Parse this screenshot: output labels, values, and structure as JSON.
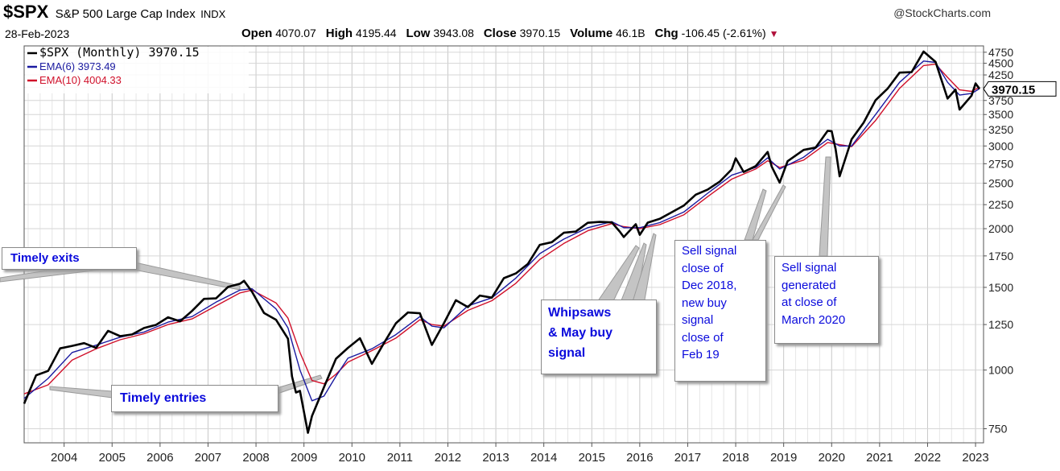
{
  "header": {
    "symbol": "$SPX",
    "description": "S&P 500 Large Cap Index",
    "exchange": "INDX",
    "credit": "@StockCharts.com",
    "date": "28-Feb-2023",
    "open_label": "Open",
    "open": "4070.07",
    "high_label": "High",
    "high": "4195.44",
    "low_label": "Low",
    "low": "3943.08",
    "close_label": "Close",
    "close": "3970.15",
    "volume_label": "Volume",
    "volume": "46.1B",
    "chg_label": "Chg",
    "chg": "-106.45 (-2.61%)"
  },
  "legend": {
    "items": [
      {
        "label": "$SPX (Monthly) 3970.15",
        "color": "#000000"
      },
      {
        "label": "EMA(6) 3973.49",
        "color": "#1a1aa0"
      },
      {
        "label": "EMA(10) 4004.33",
        "color": "#d0102a"
      }
    ]
  },
  "last_value_label": "3970.15",
  "annotations": {
    "timely_exits": "Timely exits",
    "timely_entries": "Timely entries",
    "whipsaws": [
      "Whipsaws",
      "& May buy",
      "signal"
    ],
    "dec2018": [
      "Sell signal",
      "close of",
      "Dec 2018,",
      "new buy",
      "signal",
      "close of",
      "Feb 19"
    ],
    "mar2020": [
      "Sell signal",
      "generated",
      "at close of",
      "March 2020"
    ]
  },
  "chart_data": {
    "type": "line",
    "title": "$SPX S&P 500 Large Cap Index INDX",
    "y_scale": "log",
    "ylim": [
      700,
      4900
    ],
    "xlim": [
      "2003-03",
      "2023-03"
    ],
    "y_ticks": [
      750,
      1000,
      1250,
      1500,
      1750,
      2000,
      2250,
      2500,
      2750,
      3000,
      3250,
      3500,
      3750,
      4000,
      4250,
      4500,
      4750
    ],
    "x_ticks": [
      "2004",
      "2005",
      "2006",
      "2007",
      "2008",
      "2009",
      "2010",
      "2011",
      "2012",
      "2013",
      "2014",
      "2015",
      "2016",
      "2017",
      "2018",
      "2019",
      "2020",
      "2021",
      "2022",
      "2023"
    ],
    "grid": true,
    "legend_position": "top-left",
    "series": [
      {
        "name": "$SPX (Monthly)",
        "color": "#000000",
        "points": [
          [
            "2003-03",
            848
          ],
          [
            "2003-06",
            975
          ],
          [
            "2003-09",
            996
          ],
          [
            "2003-12",
            1112
          ],
          [
            "2004-03",
            1126
          ],
          [
            "2004-06",
            1141
          ],
          [
            "2004-09",
            1115
          ],
          [
            "2004-12",
            1212
          ],
          [
            "2005-03",
            1181
          ],
          [
            "2005-06",
            1191
          ],
          [
            "2005-09",
            1229
          ],
          [
            "2005-12",
            1248
          ],
          [
            "2006-03",
            1295
          ],
          [
            "2006-06",
            1270
          ],
          [
            "2006-09",
            1336
          ],
          [
            "2006-12",
            1418
          ],
          [
            "2007-03",
            1421
          ],
          [
            "2007-06",
            1503
          ],
          [
            "2007-09",
            1527
          ],
          [
            "2007-10",
            1549
          ],
          [
            "2007-12",
            1468
          ],
          [
            "2008-03",
            1323
          ],
          [
            "2008-06",
            1280
          ],
          [
            "2008-09",
            1166
          ],
          [
            "2008-10",
            969
          ],
          [
            "2008-11",
            896
          ],
          [
            "2008-12",
            903
          ],
          [
            "2009-02",
            735
          ],
          [
            "2009-03",
            798
          ],
          [
            "2009-06",
            919
          ],
          [
            "2009-09",
            1057
          ],
          [
            "2009-12",
            1115
          ],
          [
            "2010-03",
            1169
          ],
          [
            "2010-06",
            1031
          ],
          [
            "2010-09",
            1141
          ],
          [
            "2010-12",
            1258
          ],
          [
            "2011-03",
            1326
          ],
          [
            "2011-06",
            1321
          ],
          [
            "2011-09",
            1131
          ],
          [
            "2011-12",
            1258
          ],
          [
            "2012-03",
            1408
          ],
          [
            "2012-06",
            1362
          ],
          [
            "2012-09",
            1441
          ],
          [
            "2012-12",
            1426
          ],
          [
            "2013-03",
            1569
          ],
          [
            "2013-06",
            1606
          ],
          [
            "2013-09",
            1682
          ],
          [
            "2013-12",
            1848
          ],
          [
            "2014-03",
            1872
          ],
          [
            "2014-06",
            1960
          ],
          [
            "2014-09",
            1972
          ],
          [
            "2014-12",
            2059
          ],
          [
            "2015-03",
            2068
          ],
          [
            "2015-06",
            2063
          ],
          [
            "2015-08",
            1972
          ],
          [
            "2015-09",
            1920
          ],
          [
            "2015-12",
            2044
          ],
          [
            "2016-01",
            1940
          ],
          [
            "2016-03",
            2060
          ],
          [
            "2016-06",
            2099
          ],
          [
            "2016-09",
            2168
          ],
          [
            "2016-12",
            2239
          ],
          [
            "2017-03",
            2363
          ],
          [
            "2017-06",
            2423
          ],
          [
            "2017-09",
            2519
          ],
          [
            "2017-12",
            2674
          ],
          [
            "2018-01",
            2824
          ],
          [
            "2018-03",
            2641
          ],
          [
            "2018-06",
            2718
          ],
          [
            "2018-09",
            2914
          ],
          [
            "2018-10",
            2712
          ],
          [
            "2018-12",
            2507
          ],
          [
            "2019-02",
            2784
          ],
          [
            "2019-06",
            2942
          ],
          [
            "2019-09",
            2977
          ],
          [
            "2019-12",
            3231
          ],
          [
            "2020-01",
            3226
          ],
          [
            "2020-02",
            2954
          ],
          [
            "2020-03",
            2585
          ],
          [
            "2020-06",
            3100
          ],
          [
            "2020-09",
            3363
          ],
          [
            "2020-12",
            3756
          ],
          [
            "2021-03",
            3973
          ],
          [
            "2021-06",
            4298
          ],
          [
            "2021-09",
            4308
          ],
          [
            "2021-12",
            4766
          ],
          [
            "2022-03",
            4530
          ],
          [
            "2022-06",
            3785
          ],
          [
            "2022-08",
            3955
          ],
          [
            "2022-09",
            3586
          ],
          [
            "2022-12",
            3840
          ],
          [
            "2023-01",
            4077
          ],
          [
            "2023-02",
            3970
          ]
        ]
      },
      {
        "name": "EMA(6)",
        "color": "#1a1aa0",
        "points": [
          [
            "2003-03",
            870
          ],
          [
            "2003-09",
            960
          ],
          [
            "2004-03",
            1090
          ],
          [
            "2004-09",
            1130
          ],
          [
            "2005-03",
            1175
          ],
          [
            "2005-09",
            1205
          ],
          [
            "2006-03",
            1265
          ],
          [
            "2006-09",
            1300
          ],
          [
            "2007-03",
            1395
          ],
          [
            "2007-09",
            1480
          ],
          [
            "2007-12",
            1490
          ],
          [
            "2008-06",
            1350
          ],
          [
            "2008-09",
            1230
          ],
          [
            "2008-12",
            1000
          ],
          [
            "2009-03",
            860
          ],
          [
            "2009-06",
            880
          ],
          [
            "2009-09",
            970
          ],
          [
            "2009-12",
            1060
          ],
          [
            "2010-06",
            1110
          ],
          [
            "2010-12",
            1190
          ],
          [
            "2011-06",
            1300
          ],
          [
            "2011-09",
            1240
          ],
          [
            "2011-12",
            1230
          ],
          [
            "2012-06",
            1370
          ],
          [
            "2012-12",
            1425
          ],
          [
            "2013-06",
            1570
          ],
          [
            "2013-12",
            1770
          ],
          [
            "2014-06",
            1900
          ],
          [
            "2014-12",
            2010
          ],
          [
            "2015-06",
            2070
          ],
          [
            "2015-09",
            2010
          ],
          [
            "2016-01",
            2010
          ],
          [
            "2016-06",
            2060
          ],
          [
            "2016-12",
            2170
          ],
          [
            "2017-06",
            2380
          ],
          [
            "2017-12",
            2600
          ],
          [
            "2018-06",
            2700
          ],
          [
            "2018-09",
            2830
          ],
          [
            "2018-12",
            2680
          ],
          [
            "2019-06",
            2840
          ],
          [
            "2019-12",
            3100
          ],
          [
            "2020-03",
            3000
          ],
          [
            "2020-06",
            3000
          ],
          [
            "2020-12",
            3500
          ],
          [
            "2021-06",
            4100
          ],
          [
            "2021-12",
            4550
          ],
          [
            "2022-03",
            4520
          ],
          [
            "2022-06",
            4100
          ],
          [
            "2022-09",
            3850
          ],
          [
            "2022-12",
            3880
          ],
          [
            "2023-02",
            3973
          ]
        ]
      },
      {
        "name": "EMA(10)",
        "color": "#d0102a",
        "points": [
          [
            "2003-03",
            890
          ],
          [
            "2003-09",
            930
          ],
          [
            "2004-03",
            1050
          ],
          [
            "2004-09",
            1110
          ],
          [
            "2005-03",
            1160
          ],
          [
            "2005-09",
            1195
          ],
          [
            "2006-03",
            1250
          ],
          [
            "2006-09",
            1285
          ],
          [
            "2007-03",
            1370
          ],
          [
            "2007-09",
            1460
          ],
          [
            "2007-12",
            1480
          ],
          [
            "2008-06",
            1390
          ],
          [
            "2008-09",
            1290
          ],
          [
            "2008-12",
            1090
          ],
          [
            "2009-03",
            950
          ],
          [
            "2009-06",
            935
          ],
          [
            "2009-09",
            980
          ],
          [
            "2009-12",
            1040
          ],
          [
            "2010-06",
            1100
          ],
          [
            "2010-12",
            1170
          ],
          [
            "2011-06",
            1280
          ],
          [
            "2011-09",
            1250
          ],
          [
            "2011-12",
            1240
          ],
          [
            "2012-06",
            1340
          ],
          [
            "2012-12",
            1405
          ],
          [
            "2013-06",
            1530
          ],
          [
            "2013-12",
            1720
          ],
          [
            "2014-06",
            1860
          ],
          [
            "2014-12",
            1980
          ],
          [
            "2015-06",
            2050
          ],
          [
            "2015-09",
            2020
          ],
          [
            "2016-01",
            2000
          ],
          [
            "2016-06",
            2040
          ],
          [
            "2016-12",
            2140
          ],
          [
            "2017-06",
            2340
          ],
          [
            "2017-12",
            2550
          ],
          [
            "2018-06",
            2680
          ],
          [
            "2018-09",
            2790
          ],
          [
            "2018-12",
            2700
          ],
          [
            "2019-06",
            2800
          ],
          [
            "2019-12",
            3050
          ],
          [
            "2020-03",
            3020
          ],
          [
            "2020-06",
            2990
          ],
          [
            "2020-12",
            3400
          ],
          [
            "2021-06",
            3980
          ],
          [
            "2021-12",
            4450
          ],
          [
            "2022-03",
            4480
          ],
          [
            "2022-06",
            4200
          ],
          [
            "2022-09",
            3950
          ],
          [
            "2022-12",
            3920
          ],
          [
            "2023-02",
            4004
          ]
        ]
      }
    ]
  }
}
